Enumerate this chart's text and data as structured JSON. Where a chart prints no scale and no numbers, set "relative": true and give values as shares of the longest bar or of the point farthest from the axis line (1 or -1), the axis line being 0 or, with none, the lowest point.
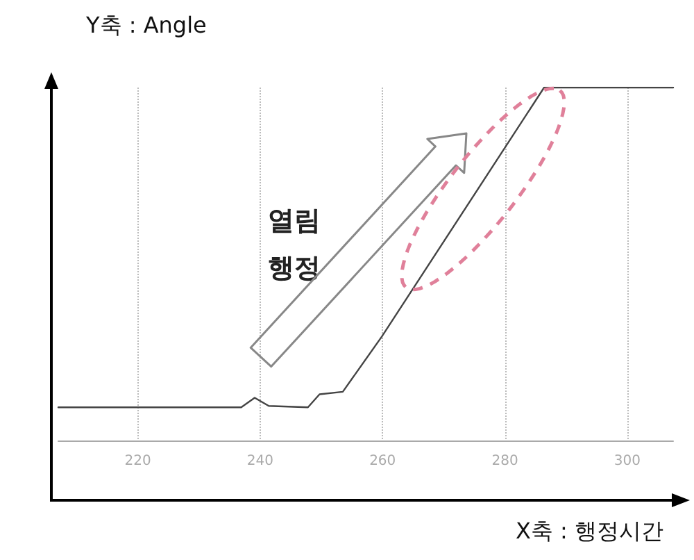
{
  "chart_data": {
    "type": "line",
    "xlabel": "X축 : 행정시간",
    "ylabel": "Y축 : Angle",
    "annotations": [
      "열림\n행정"
    ],
    "x": [
      207,
      232.3,
      236.9,
      239.1,
      241.4,
      247.8,
      249.7,
      253.5,
      259.9,
      286.4,
      307.5
    ],
    "series": [
      {
        "color": "#444444",
        "values": [
          0.094,
          0.094,
          0.094,
          0.121,
          0.098,
          0.094,
          0.131,
          0.138,
          0.295,
          1,
          1
        ]
      }
    ],
    "relative": true,
    "xlim": [
      207,
      307.5
    ],
    "xticks": [
      220,
      240,
      260,
      280,
      300
    ],
    "grid": "x",
    "marker": "none",
    "line_style": "solid"
  }
}
